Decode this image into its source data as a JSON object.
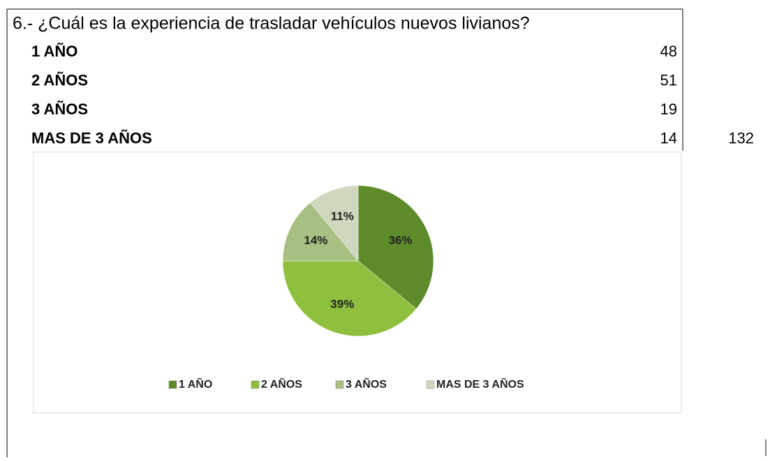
{
  "title": "6.- ¿Cuál es la experiencia de trasladar vehículos nuevos livianos?",
  "table": {
    "rows": [
      [
        "1 AÑO",
        48
      ],
      [
        "2 AÑOS",
        51
      ],
      [
        "3 AÑOS",
        19
      ],
      [
        "MAS DE 3 AÑOS",
        14
      ]
    ],
    "total": 132
  },
  "chart_data": {
    "type": "pie",
    "categories": [
      "1 AÑO",
      "2 AÑOS",
      "3 AÑOS",
      "MAS DE 3 AÑOS"
    ],
    "values": [
      36,
      39,
      14,
      11
    ],
    "value_labels": [
      "36%",
      "39%",
      "14%",
      "11%"
    ],
    "colors": [
      "#5f8c2b",
      "#8fbf3e",
      "#a7bf80",
      "#cfd8be"
    ],
    "legend": "bottom"
  }
}
